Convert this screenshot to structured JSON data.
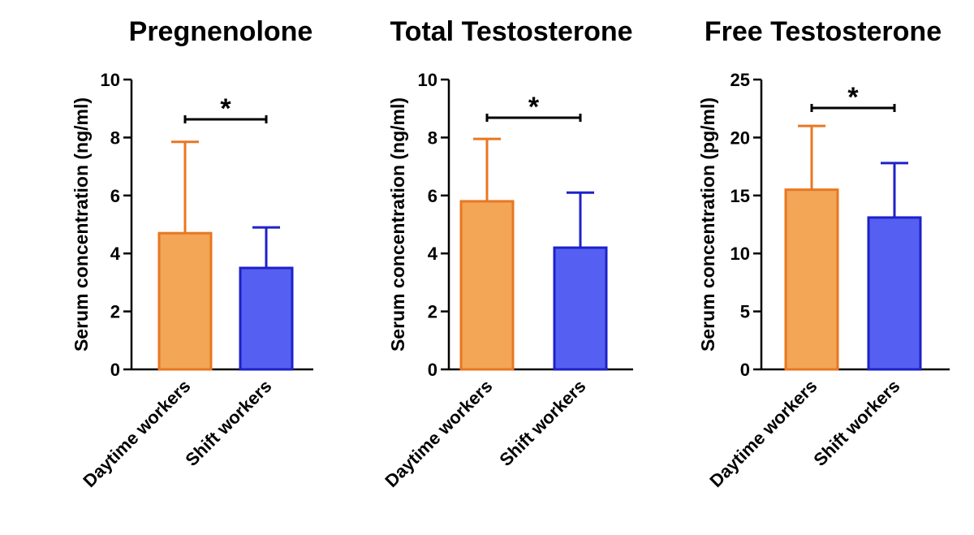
{
  "colors": {
    "daytime_fill": "#F2A656",
    "daytime_stroke": "#E87722",
    "shift_fill": "#5560F2",
    "shift_stroke": "#1E22C8"
  },
  "chart_data": [
    {
      "type": "bar",
      "title": "Pregnenolone",
      "ylabel": "Serum concentration (ng/ml)",
      "categories": [
        "Daytime workers",
        "Shift workers"
      ],
      "values": [
        4.7,
        3.5
      ],
      "error_upper": [
        7.85,
        4.9
      ],
      "ylim": [
        0,
        10
      ],
      "yticks": [
        0,
        2,
        4,
        6,
        8,
        10
      ],
      "significance": "*",
      "grid": false
    },
    {
      "type": "bar",
      "title": "Total Testosterone",
      "ylabel": "Serum concentration (ng/ml)",
      "categories": [
        "Daytime workers",
        "Shift workers"
      ],
      "values": [
        5.8,
        4.2
      ],
      "error_upper": [
        7.95,
        6.1
      ],
      "ylim": [
        0,
        10
      ],
      "yticks": [
        0,
        2,
        4,
        6,
        8,
        10
      ],
      "significance": "*",
      "grid": false
    },
    {
      "type": "bar",
      "title": "Free Testosterone",
      "ylabel": "Serum concentration (pg/ml)",
      "categories": [
        "Daytime workers",
        "Shift workers"
      ],
      "values": [
        15.5,
        13.1
      ],
      "error_upper": [
        21.0,
        17.8
      ],
      "ylim": [
        0,
        25
      ],
      "yticks": [
        0,
        5,
        10,
        15,
        20,
        25
      ],
      "significance": "*",
      "grid": false
    }
  ]
}
